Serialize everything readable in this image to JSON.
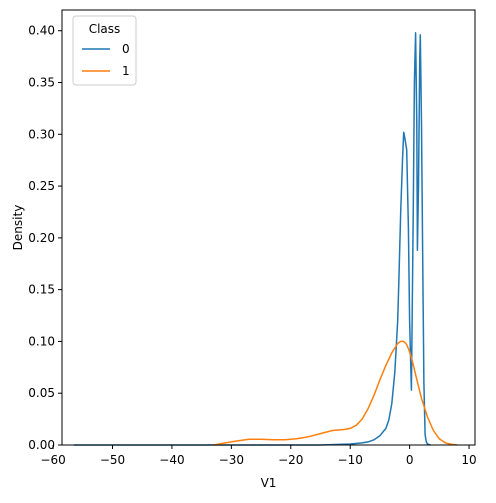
{
  "chart_data": {
    "type": "line",
    "title": "",
    "xlabel": "V1",
    "ylabel": "Density",
    "xlim": [
      -58.5,
      11
    ],
    "ylim": [
      0,
      0.42
    ],
    "grid": false,
    "xticks": [
      -60,
      -50,
      -40,
      -30,
      -20,
      -10,
      0,
      10
    ],
    "xtick_labels": [
      "−60",
      "−50",
      "−40",
      "−30",
      "−20",
      "−10",
      "0",
      "10"
    ],
    "yticks": [
      0,
      0.05,
      0.1,
      0.15,
      0.2,
      0.25,
      0.3,
      0.35,
      0.4
    ],
    "ytick_labels": [
      "0.00",
      "0.05",
      "0.10",
      "0.15",
      "0.20",
      "0.25",
      "0.30",
      "0.35",
      "0.40"
    ],
    "legend": {
      "title": "Class",
      "placement": "top-left"
    },
    "series": [
      {
        "name": "0",
        "color": "#1f77b4",
        "x": [
          -56.5,
          -45,
          -35,
          -25,
          -15,
          -10,
          -8,
          -7,
          -6,
          -5,
          -4,
          -3.5,
          -3,
          -2.5,
          -2,
          -1.8,
          -1.5,
          -1.2,
          -1.0,
          -0.8,
          -0.5,
          -0.2,
          0,
          0.3,
          0.6,
          0.8,
          1.0,
          1.2,
          1.3,
          1.5,
          1.7,
          1.8,
          2.0,
          2.2,
          2.4,
          2.6,
          2.8,
          3.0,
          3.5
        ],
        "y": [
          0,
          0,
          0,
          0,
          0,
          0.001,
          0.002,
          0.003,
          0.005,
          0.009,
          0.016,
          0.024,
          0.04,
          0.07,
          0.12,
          0.16,
          0.225,
          0.275,
          0.302,
          0.296,
          0.285,
          0.21,
          0.12,
          0.053,
          0.22,
          0.35,
          0.398,
          0.31,
          0.188,
          0.25,
          0.37,
          0.396,
          0.31,
          0.18,
          0.06,
          0.01,
          0.003,
          0.001,
          0
        ]
      },
      {
        "name": "1",
        "color": "#ff7f0e",
        "x": [
          -33,
          -31,
          -29,
          -27,
          -25,
          -23,
          -21,
          -19,
          -17,
          -15,
          -13,
          -11,
          -10,
          -9,
          -8,
          -7,
          -6,
          -5,
          -4,
          -3,
          -2,
          -1.5,
          -1,
          -0.5,
          0,
          0.5,
          1,
          2,
          3,
          4,
          5,
          6,
          7,
          8
        ],
        "y": [
          0,
          0.002,
          0.004,
          0.0055,
          0.0055,
          0.005,
          0.005,
          0.006,
          0.008,
          0.011,
          0.014,
          0.015,
          0.016,
          0.019,
          0.025,
          0.035,
          0.048,
          0.063,
          0.077,
          0.089,
          0.098,
          0.1,
          0.1,
          0.097,
          0.09,
          0.08,
          0.068,
          0.045,
          0.027,
          0.014,
          0.006,
          0.002,
          0.0008,
          0
        ]
      }
    ]
  }
}
